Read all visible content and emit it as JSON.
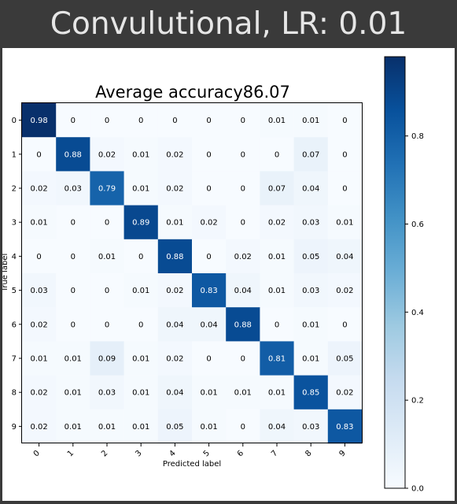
{
  "header": {
    "title": "Convulutional, LR: 0.01"
  },
  "chart_data": {
    "type": "heatmap",
    "title": "Average accuracy86.07",
    "xlabel": "Predicted label",
    "ylabel": "True label",
    "x_tick_labels": [
      "0",
      "1",
      "2",
      "3",
      "4",
      "5",
      "6",
      "7",
      "8",
      "9"
    ],
    "y_tick_labels": [
      "0",
      "1",
      "2",
      "3",
      "4",
      "5",
      "6",
      "7",
      "8",
      "9"
    ],
    "matrix": [
      [
        0.98,
        0.0,
        0.0,
        0.0,
        0.0,
        0.0,
        0.0,
        0.01,
        0.01,
        0.0
      ],
      [
        0.0,
        0.88,
        0.02,
        0.01,
        0.02,
        0.0,
        0.0,
        0.0,
        0.07,
        0.0
      ],
      [
        0.02,
        0.03,
        0.79,
        0.01,
        0.02,
        0.0,
        0.0,
        0.07,
        0.04,
        0.0
      ],
      [
        0.01,
        0.0,
        0.0,
        0.89,
        0.01,
        0.02,
        0.0,
        0.02,
        0.03,
        0.01
      ],
      [
        0.0,
        0.0,
        0.01,
        0.0,
        0.88,
        0.0,
        0.02,
        0.01,
        0.05,
        0.04
      ],
      [
        0.03,
        0.0,
        0.0,
        0.01,
        0.02,
        0.83,
        0.04,
        0.01,
        0.03,
        0.02
      ],
      [
        0.02,
        0.0,
        0.0,
        0.0,
        0.04,
        0.04,
        0.88,
        0.0,
        0.01,
        0.0
      ],
      [
        0.01,
        0.01,
        0.09,
        0.01,
        0.02,
        0.0,
        0.0,
        0.81,
        0.01,
        0.05
      ],
      [
        0.02,
        0.01,
        0.03,
        0.01,
        0.04,
        0.01,
        0.01,
        0.01,
        0.85,
        0.02
      ],
      [
        0.02,
        0.01,
        0.01,
        0.01,
        0.05,
        0.01,
        0.0,
        0.04,
        0.03,
        0.83
      ]
    ],
    "colorbar": {
      "min": 0.0,
      "max": 0.98,
      "tick_values": [
        0.0,
        0.2,
        0.4,
        0.6,
        0.8
      ],
      "tick_labels": [
        "0.0",
        "0.2",
        "0.4",
        "0.6",
        "0.8"
      ]
    },
    "colormap": "Blues",
    "colors": {
      "low": "#f7fbff",
      "high": "#08306b"
    }
  }
}
